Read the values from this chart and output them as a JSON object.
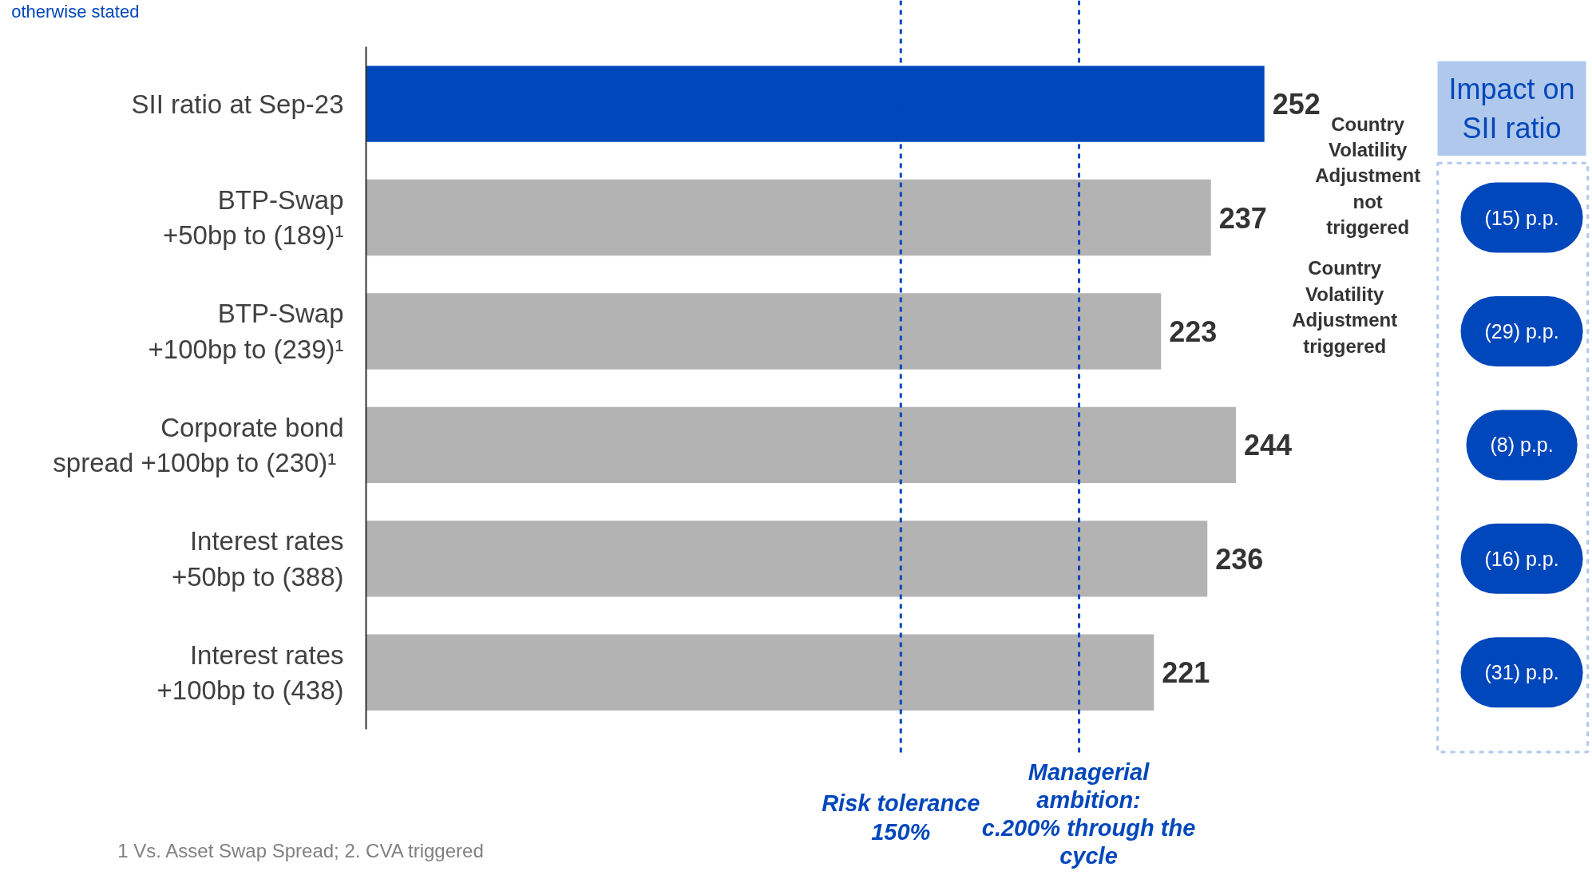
{
  "chart_data": {
    "type": "bar",
    "orientation": "horizontal",
    "categories": [
      "SII ratio at Sep-23",
      "BTP-Swap\n+50bp to (189)¹",
      "BTP-Swap\n+100bp to (239)¹",
      "Corporate bond\nspread  +100bp to (230)¹",
      "Interest rates\n+50bp to (388)",
      "Interest rates\n+100bp to (438)"
    ],
    "values": [
      252,
      237,
      223,
      244,
      236,
      221
    ],
    "colors": [
      "#0047bb",
      "#b3b3b3",
      "#b3b3b3",
      "#b3b3b3",
      "#b3b3b3",
      "#b3b3b3"
    ],
    "data_labels": true,
    "xlim": [
      0,
      344
    ],
    "tick_labels": "y",
    "ref_lines": [
      {
        "axis": "x",
        "value": 150,
        "label": "Risk tolerance\n150%",
        "color": "#0047bb",
        "line_style": "dashed"
      },
      {
        "axis": "x",
        "value": 200,
        "label": "Managerial\nambition:\nc.200% through the\ncycle",
        "color": "#0047bb",
        "line_style": "dashed"
      }
    ],
    "annotations": [
      "otherwise stated",
      "Country\nVolatility\nAdjustment\nnot\ntriggered",
      "Country\nVolatility\nAdjustment\ntriggered",
      "Impact on\nSII ratio",
      "(15) p.p.",
      "(29) p.p.",
      "(8) p.p.",
      "(16) p.p.",
      "(31) p.p.",
      "1  Vs. Asset Swap Spread; 2. CVA triggered"
    ]
  }
}
